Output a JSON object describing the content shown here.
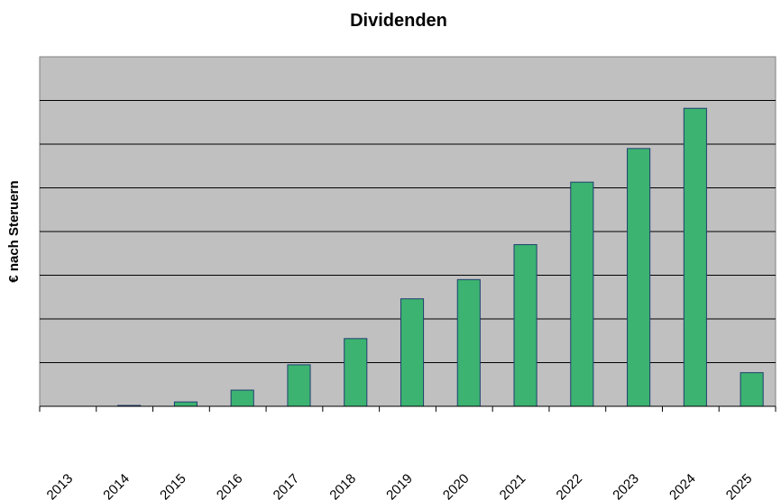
{
  "chart_data": {
    "type": "bar",
    "title": "Dividenden",
    "xlabel": "",
    "ylabel": "€ nach Steruern",
    "categories": [
      "2013",
      "2014",
      "2015",
      "2016",
      "2017",
      "2018",
      "2019",
      "2020",
      "2021",
      "2022",
      "2023",
      "2024",
      "2025"
    ],
    "values": [
      0,
      0.02,
      0.1,
      0.37,
      0.95,
      1.55,
      2.46,
      2.9,
      3.7,
      5.13,
      5.9,
      6.82,
      0.77
    ],
    "ylim": [
      0,
      8
    ],
    "y_gridlines": [
      1,
      2,
      3,
      4,
      5,
      6,
      7
    ],
    "y_tick_labels_shown": false,
    "grid": true,
    "legend": "none",
    "colors": {
      "plot_background": "#c0c0c0",
      "bar_fill": "#3cb371",
      "bar_stroke": "#1f3f6f",
      "gridline": "#000000",
      "text": "#000000"
    }
  }
}
